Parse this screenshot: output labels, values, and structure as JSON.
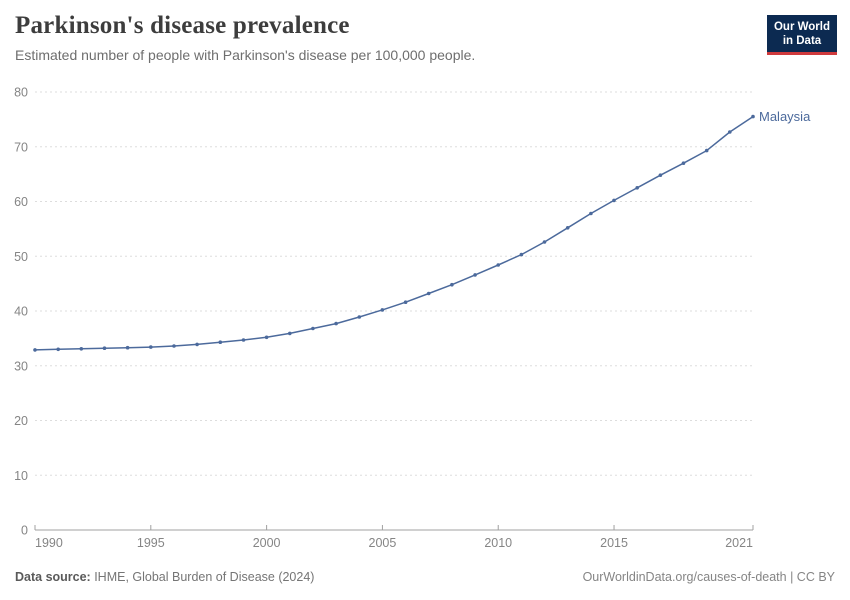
{
  "header": {
    "title": "Parkinson's disease prevalence",
    "subtitle": "Estimated number of people with Parkinson's disease per 100,000 people.",
    "logo": {
      "line1": "Our World",
      "line2": "in Data"
    }
  },
  "chart_data": {
    "type": "line",
    "title": "Parkinson's disease prevalence",
    "subtitle": "Estimated number of people with Parkinson's disease per 100,000 people.",
    "x": [
      1990,
      1991,
      1992,
      1993,
      1994,
      1995,
      1996,
      1997,
      1998,
      1999,
      2000,
      2001,
      2002,
      2003,
      2004,
      2005,
      2006,
      2007,
      2008,
      2009,
      2010,
      2011,
      2012,
      2013,
      2014,
      2015,
      2016,
      2017,
      2018,
      2019,
      2020,
      2021
    ],
    "series": [
      {
        "name": "Malaysia",
        "color": "#4C6A9C",
        "values": [
          32.9,
          33.0,
          33.1,
          33.2,
          33.3,
          33.4,
          33.6,
          33.9,
          34.3,
          34.7,
          35.2,
          35.9,
          36.8,
          37.7,
          38.9,
          40.2,
          41.6,
          43.2,
          44.8,
          46.6,
          48.4,
          50.3,
          52.6,
          55.2,
          57.8,
          60.2,
          62.5,
          64.8,
          67.0,
          69.3,
          72.7,
          75.5
        ]
      }
    ],
    "x_ticks": [
      1990,
      1995,
      2000,
      2005,
      2010,
      2015,
      2021
    ],
    "y_ticks": [
      0,
      10,
      20,
      30,
      40,
      50,
      60,
      70,
      80
    ],
    "xlim": [
      1990,
      2021
    ],
    "ylim": [
      0,
      80
    ],
    "xlabel": "",
    "ylabel": "",
    "grid": "horizontal-dashed",
    "legend": "end-of-line-label",
    "markers": true
  },
  "footer": {
    "source_label": "Data source:",
    "source_value": " IHME, Global Burden of Disease (2024)",
    "link": "OurWorldinData.org/causes-of-death | CC BY"
  },
  "colors": {
    "series_blue": "#4C6A9C",
    "grid": "#dddddd",
    "axis": "#a0a0a0",
    "tick_label": "#858585",
    "title": "#3d3d3d",
    "subtitle": "#6e6e6e",
    "logo_navy": "#0c2a51",
    "logo_red": "#cf3a3d",
    "background": "#ffffff"
  }
}
